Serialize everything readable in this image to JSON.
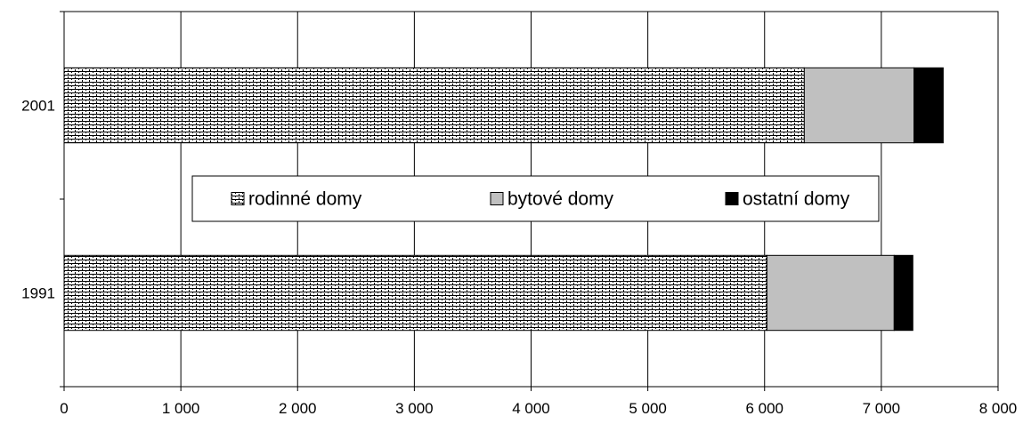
{
  "chart_data": {
    "type": "bar",
    "orientation": "horizontal",
    "stacked": true,
    "categories": [
      "1991",
      "2001"
    ],
    "series": [
      {
        "name": "rodinné domy",
        "values": [
          6020,
          6340
        ],
        "fill": "pattern-brick"
      },
      {
        "name": "bytové domy",
        "values": [
          1090,
          940
        ],
        "fill": "#c0c0c0"
      },
      {
        "name": "ostatní domy",
        "values": [
          160,
          250
        ],
        "fill": "#000000"
      }
    ],
    "x_ticks": [
      "0",
      "1 000",
      "2 000",
      "3 000",
      "4 000",
      "5 000",
      "6 000",
      "7 000",
      "8 000"
    ],
    "xlim": [
      0,
      8000
    ],
    "title": "",
    "xlabel": "",
    "ylabel": "",
    "grid": "vertical",
    "legend_position": "center"
  }
}
